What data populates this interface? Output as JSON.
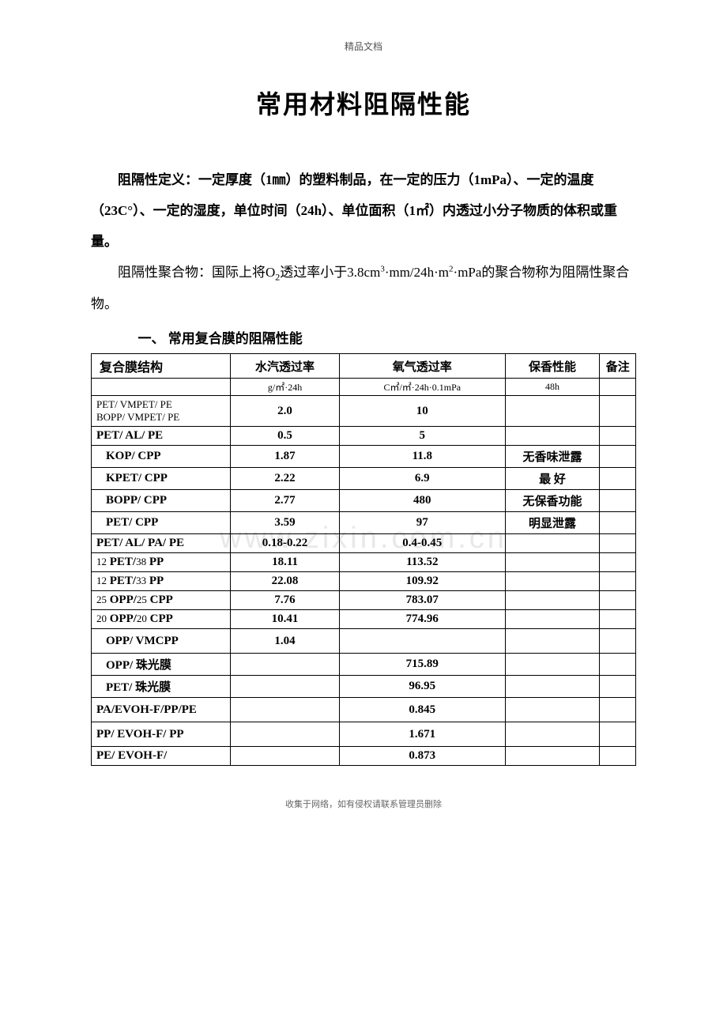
{
  "header_small": "精品文档",
  "title": "常用材料阻隔性能",
  "para1_prefix": "阻隔性定义：",
  "para1_body": "一定厚度（1㎜）的塑料制品，在一定的压力（1mPa）、一定的温度（23C°）、一定的湿度，单位时间（24h）、单位面积（1㎡）内透过小分子物质的体积或重量。",
  "para2_prefix": "阻隔性聚合物：",
  "para2_body_a": "国际上将O",
  "para2_sub": "2",
  "para2_body_b": "透过率小于3.8cm",
  "para2_sup1": "3",
  "para2_body_c": "·mm/24h·m",
  "para2_sup2": "2",
  "para2_body_d": "·mPa的聚合物称为阻隔性聚合物。",
  "section_heading": "一、 常用复合膜的阻隔性能",
  "watermark": "www.zixin.com.cn",
  "footer_small": "收集于网络，如有侵权请联系管理员删除",
  "table": {
    "headers": {
      "col1": "复合膜结构",
      "col2": "水汽透过率",
      "col3": "氧气透过率",
      "col4": "保香性能",
      "col5": "备注"
    },
    "subheaders": {
      "col1": "",
      "col2": "g/㎡·24h",
      "col3": "C㎡/㎡·24h·0.1mPa",
      "col4": "48h",
      "col5": ""
    },
    "rows": [
      {
        "c1a": "PET/ VMPET/ PE",
        "c1b": "BOPP/ VMPET/ PE",
        "c2": "2.0",
        "c3": "10",
        "c4": "",
        "c5": "",
        "small": true
      },
      {
        "c1": "PET/ AL/ PE",
        "c2": "0.5",
        "c3": "5",
        "c4": "",
        "c5": ""
      },
      {
        "c1": "KOP/  CPP",
        "c2": "1.87",
        "c3": "11.8",
        "c4": "无香味泄露",
        "c5": "",
        "indent": true
      },
      {
        "c1": "KPET/ CPP",
        "c2": "2.22",
        "c3": "6.9",
        "c4": "最 好",
        "c5": "",
        "indent": true
      },
      {
        "c1": "BOPP/ CPP",
        "c2": "2.77",
        "c3": "480",
        "c4": "无保香功能",
        "c5": "",
        "indent": true
      },
      {
        "c1": "PET/  CPP",
        "c2": "3.59",
        "c3": "97",
        "c4": "明显泄露",
        "c5": "",
        "indent": true
      },
      {
        "c1": "PET/ AL/ PA/ PE",
        "c2": "0.18-0.22",
        "c3": "0.4-0.45",
        "c4": "",
        "c5": ""
      },
      {
        "c1": "12 PET/38 PP",
        "c2": "18.11",
        "c3": "113.52",
        "c4": "",
        "c5": "",
        "smallprefix": true
      },
      {
        "c1": "12 PET/33 PP",
        "c2": "22.08",
        "c3": "109.92",
        "c4": "",
        "c5": "",
        "smallprefix": true
      },
      {
        "c1": "25 OPP/25 CPP",
        "c2": "7.76",
        "c3": "783.07",
        "c4": "",
        "c5": "",
        "smallprefix": true
      },
      {
        "c1": "20 OPP/20 CPP",
        "c2": "10.41",
        "c3": "774.96",
        "c4": "",
        "c5": "",
        "smallprefix": true
      },
      {
        "c1": "OPP/ VMCPP",
        "c2": "1.04",
        "c3": "",
        "c4": "",
        "c5": "",
        "indent": true,
        "wrap": true
      },
      {
        "c1": "OPP/ 珠光膜",
        "c2": "",
        "c3": "715.89",
        "c4": "",
        "c5": "",
        "indent": true
      },
      {
        "c1": "PET/ 珠光膜",
        "c2": "",
        "c3": "96.95",
        "c4": "",
        "c5": "",
        "indent": true
      },
      {
        "c1": "PA/EVOH-F/PP/PE",
        "c2": "",
        "c3": "0.845",
        "c4": "",
        "c5": "",
        "wrap": true
      },
      {
        "c1": "PP/  EVOH-F/ PP",
        "c2": "",
        "c3": "1.671",
        "c4": "",
        "c5": "",
        "wrap": true
      },
      {
        "c1": "PE/  EVOH-F/",
        "c2": "",
        "c3": "0.873",
        "c4": "",
        "c5": ""
      }
    ]
  }
}
